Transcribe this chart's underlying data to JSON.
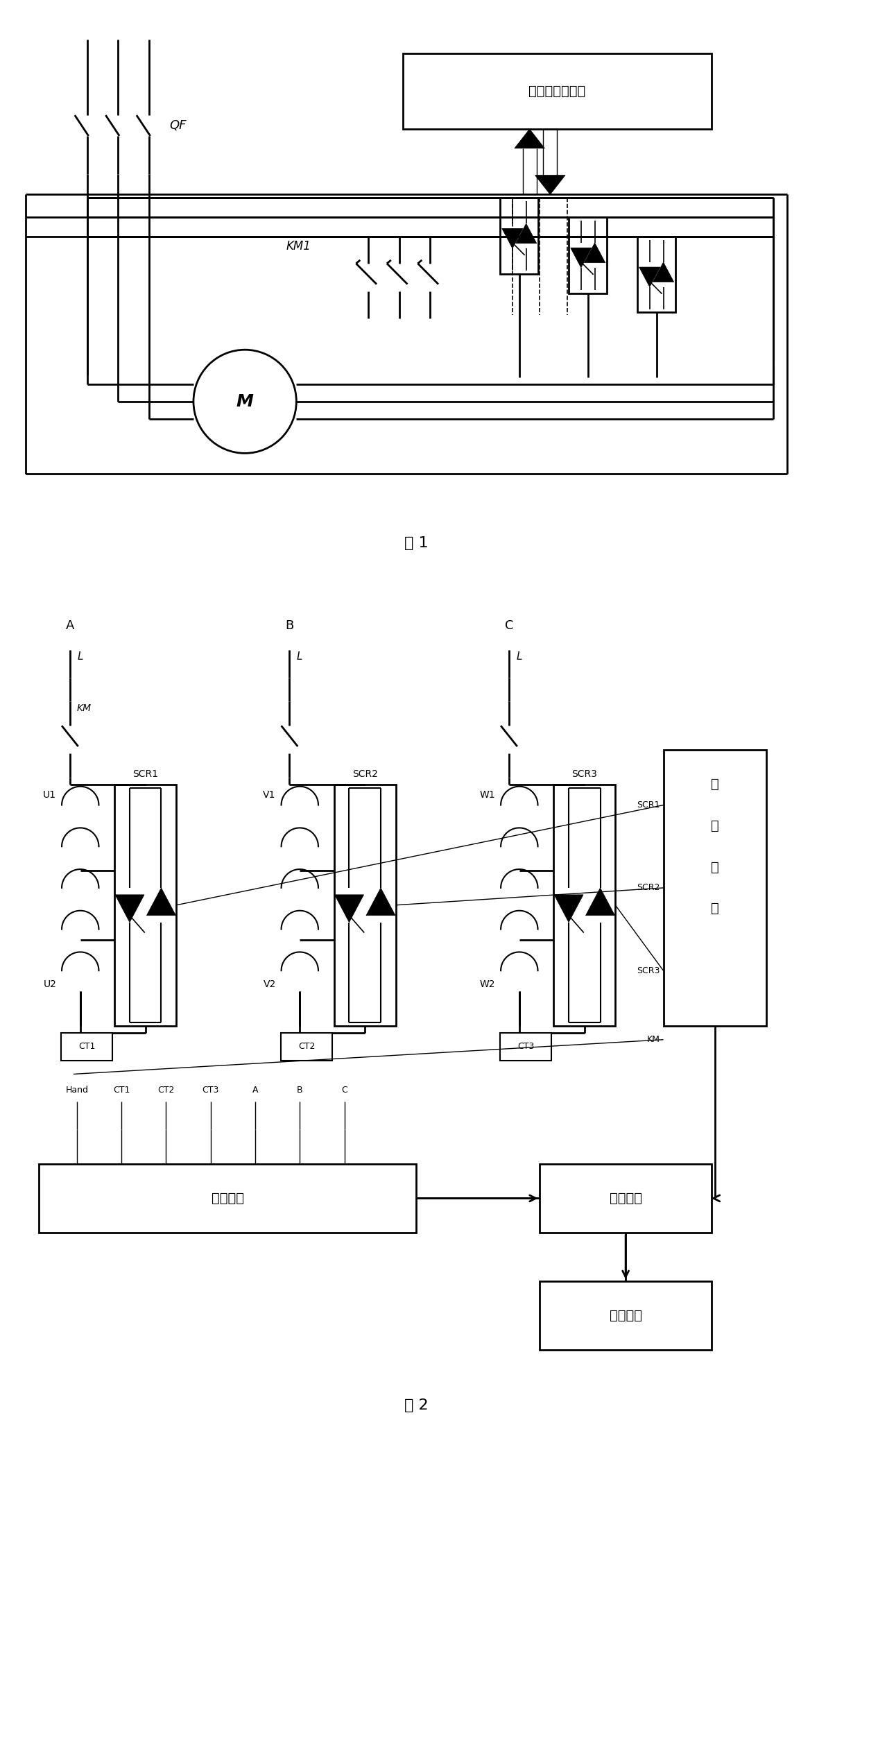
{
  "fig_width": 12.79,
  "fig_height": 25.3,
  "bg_color": "#ffffff",
  "fig1_label": "图 1",
  "fig2_label": "图 2",
  "box1_text": "检测与主控单元",
  "box_drive_lines": [
    "驱",
    "动",
    "单",
    "元"
  ],
  "box_detect_text": "检测单元",
  "box_master_text": "主控单元",
  "box_hmi_text": "人机界面",
  "motor_label": "M",
  "QF_label": "QF",
  "KM1_label": "KM1",
  "KM_label": "KM",
  "phase_labels": [
    "A",
    "B",
    "C"
  ],
  "scr_labels": [
    "SCR1",
    "SCR2",
    "SCR3"
  ],
  "ct_labels": [
    "CT1",
    "CT2",
    "CT3"
  ],
  "uvw1_labels": [
    "U1",
    "V1",
    "W1"
  ],
  "uvw2_labels": [
    "U2",
    "V2",
    "W2"
  ],
  "hand_label": "Hand",
  "bottom_labels": [
    "Hand",
    "CT1",
    "CT2",
    "CT3",
    "A",
    "B",
    "C"
  ],
  "drive_scr_labels": [
    "SCR1",
    "SCR2",
    "SCR3",
    "KM"
  ]
}
